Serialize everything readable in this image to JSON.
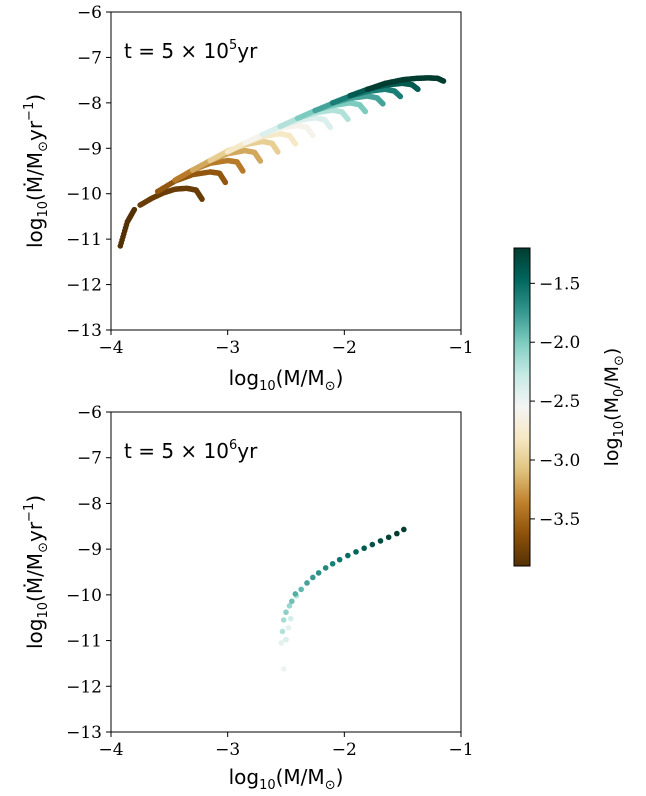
{
  "chart_data": [
    {
      "type": "scatter",
      "panel": "top",
      "annotation": {
        "t": "t = 5 × 10",
        "sup": "5",
        "unit": "yr"
      },
      "xlabel": {
        "main": "log",
        "sub": "10",
        "rest": "(M/M",
        "sun": "⊙",
        "close": ")"
      },
      "ylabel": {
        "main": "log",
        "sub": "10",
        "rest": "(Ṁ/M",
        "sun": "⊙",
        "yr": "yr",
        "sup": "−1",
        "close": ")"
      },
      "xlim": [
        -4,
        -1
      ],
      "ylim": [
        -13,
        -6
      ],
      "xticks": [
        "−4",
        "−3",
        "−2",
        "−1"
      ],
      "yticks": [
        "−13",
        "−12",
        "−11",
        "−10",
        "−9",
        "−8",
        "−7",
        "−6"
      ],
      "grid": false,
      "description_of_series": "tracks of dots colored by log10(M0/Msun); each track starts at (xstart,ystart) and curves down-right",
      "tracks": [
        {
          "m0": -3.9,
          "x": [
            -3.92,
            -3.86,
            -3.8
          ],
          "y": [
            -11.15,
            -10.62,
            -10.35
          ]
        },
        {
          "m0": -3.8,
          "x": [
            -3.75,
            -3.65,
            -3.55,
            -3.45,
            -3.35,
            -3.27,
            -3.22
          ],
          "y": [
            -10.25,
            -10.1,
            -9.98,
            -9.9,
            -9.88,
            -9.92,
            -10.12
          ]
        },
        {
          "m0": -3.6,
          "x": [
            -3.6,
            -3.45,
            -3.3,
            -3.15,
            -3.07,
            -3.02
          ],
          "y": [
            -9.95,
            -9.72,
            -9.58,
            -9.52,
            -9.55,
            -9.75
          ]
        },
        {
          "m0": -3.4,
          "x": [
            -3.45,
            -3.3,
            -3.15,
            -3.0,
            -2.92,
            -2.87
          ],
          "y": [
            -9.7,
            -9.48,
            -9.33,
            -9.27,
            -9.3,
            -9.5
          ]
        },
        {
          "m0": -3.2,
          "x": [
            -3.3,
            -3.15,
            -3.0,
            -2.85,
            -2.77,
            -2.72
          ],
          "y": [
            -9.48,
            -9.27,
            -9.12,
            -9.05,
            -9.09,
            -9.28
          ]
        },
        {
          "m0": -3.0,
          "x": [
            -3.15,
            -3.0,
            -2.85,
            -2.7,
            -2.62,
            -2.57
          ],
          "y": [
            -9.27,
            -9.06,
            -8.92,
            -8.85,
            -8.89,
            -9.08
          ]
        },
        {
          "m0": -2.8,
          "x": [
            -3.0,
            -2.85,
            -2.7,
            -2.55,
            -2.47,
            -2.42
          ],
          "y": [
            -9.08,
            -8.88,
            -8.74,
            -8.68,
            -8.72,
            -8.9
          ]
        },
        {
          "m0": -2.6,
          "x": [
            -2.85,
            -2.7,
            -2.55,
            -2.4,
            -2.32,
            -2.27
          ],
          "y": [
            -8.88,
            -8.69,
            -8.56,
            -8.5,
            -8.54,
            -8.72
          ]
        },
        {
          "m0": -2.4,
          "x": [
            -2.7,
            -2.55,
            -2.4,
            -2.25,
            -2.17,
            -2.12
          ],
          "y": [
            -8.7,
            -8.52,
            -8.39,
            -8.33,
            -8.37,
            -8.54
          ]
        },
        {
          "m0": -2.2,
          "x": [
            -2.55,
            -2.4,
            -2.25,
            -2.1,
            -2.02,
            -1.97
          ],
          "y": [
            -8.52,
            -8.34,
            -8.22,
            -8.16,
            -8.2,
            -8.36
          ]
        },
        {
          "m0": -2.0,
          "x": [
            -2.4,
            -2.25,
            -2.1,
            -1.95,
            -1.87,
            -1.82
          ],
          "y": [
            -8.34,
            -8.17,
            -8.06,
            -8.0,
            -8.04,
            -8.19
          ]
        },
        {
          "m0": -1.8,
          "x": [
            -2.25,
            -2.1,
            -1.95,
            -1.8,
            -1.72,
            -1.67
          ],
          "y": [
            -8.17,
            -8.01,
            -7.9,
            -7.85,
            -7.89,
            -8.02
          ]
        },
        {
          "m0": -1.6,
          "x": [
            -2.1,
            -1.95,
            -1.8,
            -1.65,
            -1.57,
            -1.52
          ],
          "y": [
            -8.0,
            -7.85,
            -7.75,
            -7.7,
            -7.74,
            -7.86
          ]
        },
        {
          "m0": -1.4,
          "x": [
            -1.95,
            -1.8,
            -1.65,
            -1.5,
            -1.42,
            -1.37
          ],
          "y": [
            -7.84,
            -7.7,
            -7.61,
            -7.57,
            -7.6,
            -7.7
          ]
        },
        {
          "m0": -1.2,
          "x": [
            -1.8,
            -1.65,
            -1.5,
            -1.38,
            -1.28,
            -1.2,
            -1.15
          ],
          "y": [
            -7.7,
            -7.57,
            -7.49,
            -7.46,
            -7.45,
            -7.46,
            -7.52
          ]
        }
      ]
    },
    {
      "type": "scatter",
      "panel": "bottom",
      "annotation": {
        "t": "t = 5 × 10",
        "sup": "6",
        "unit": "yr"
      },
      "xlabel": {
        "main": "log",
        "sub": "10",
        "rest": "(M/M",
        "sun": "⊙",
        "close": ")"
      },
      "ylabel": {
        "main": "log",
        "sub": "10",
        "rest": "(Ṁ/M",
        "sun": "⊙",
        "yr": "yr",
        "sup": "−1",
        "close": ")"
      },
      "xlim": [
        -4,
        -1
      ],
      "ylim": [
        -13,
        -6
      ],
      "xticks": [
        "−4",
        "−3",
        "−2",
        "−1"
      ],
      "yticks": [
        "−13",
        "−12",
        "−11",
        "−10",
        "−9",
        "−8",
        "−7",
        "−6"
      ],
      "grid": false,
      "points": [
        {
          "x": -2.52,
          "y": -11.62,
          "m0": -2.5
        },
        {
          "x": -2.54,
          "y": -11.05,
          "m0": -2.45
        },
        {
          "x": -2.5,
          "y": -10.98,
          "m0": -2.4
        },
        {
          "x": -2.53,
          "y": -10.8,
          "m0": -2.2
        },
        {
          "x": -2.48,
          "y": -10.72,
          "m0": -2.45
        },
        {
          "x": -2.52,
          "y": -10.55,
          "m0": -2.15
        },
        {
          "x": -2.46,
          "y": -10.52,
          "m0": -2.35
        },
        {
          "x": -2.5,
          "y": -10.38,
          "m0": -2.05
        },
        {
          "x": -2.47,
          "y": -10.24,
          "m0": -2.1
        },
        {
          "x": -2.45,
          "y": -10.14,
          "m0": -1.95
        },
        {
          "x": -2.41,
          "y": -10.02,
          "m0": -2.2
        },
        {
          "x": -2.42,
          "y": -9.98,
          "m0": -1.85
        },
        {
          "x": -2.37,
          "y": -9.88,
          "m0": -1.9
        },
        {
          "x": -2.32,
          "y": -9.74,
          "m0": -1.8
        },
        {
          "x": -2.27,
          "y": -9.62,
          "m0": -1.75
        },
        {
          "x": -2.22,
          "y": -9.52,
          "m0": -1.7
        },
        {
          "x": -2.16,
          "y": -9.41,
          "m0": -1.65
        },
        {
          "x": -2.1,
          "y": -9.32,
          "m0": -1.6
        },
        {
          "x": -2.04,
          "y": -9.23,
          "m0": -1.55
        },
        {
          "x": -1.97,
          "y": -9.14,
          "m0": -1.5
        },
        {
          "x": -1.9,
          "y": -9.06,
          "m0": -1.45
        },
        {
          "x": -1.83,
          "y": -8.98,
          "m0": -1.4
        },
        {
          "x": -1.76,
          "y": -8.9,
          "m0": -1.35
        },
        {
          "x": -1.69,
          "y": -8.82,
          "m0": -1.3
        },
        {
          "x": -1.62,
          "y": -8.74,
          "m0": -1.25
        },
        {
          "x": -1.55,
          "y": -8.66,
          "m0": -1.2
        },
        {
          "x": -1.49,
          "y": -8.57,
          "m0": -1.18
        }
      ]
    }
  ],
  "colorbar": {
    "label": {
      "main": "log",
      "sub": "10",
      "rest": "(M",
      "sub0": "0",
      "rest2": "/M",
      "sun": "⊙",
      "close": ")"
    },
    "range": [
      -3.9,
      -1.2
    ],
    "ticks": [
      {
        "value": -1.5,
        "label": "−1.5"
      },
      {
        "value": -2.0,
        "label": "−2.0"
      },
      {
        "value": -2.5,
        "label": "−2.5"
      },
      {
        "value": -3.0,
        "label": "−3.0"
      },
      {
        "value": -3.5,
        "label": "−3.5"
      }
    ],
    "colormap": [
      "#543005",
      "#8c510a",
      "#bf812d",
      "#dfc27d",
      "#f6e8c3",
      "#f5f5f5",
      "#c7eae5",
      "#80cdc1",
      "#35978f",
      "#01665e",
      "#003c30"
    ]
  }
}
